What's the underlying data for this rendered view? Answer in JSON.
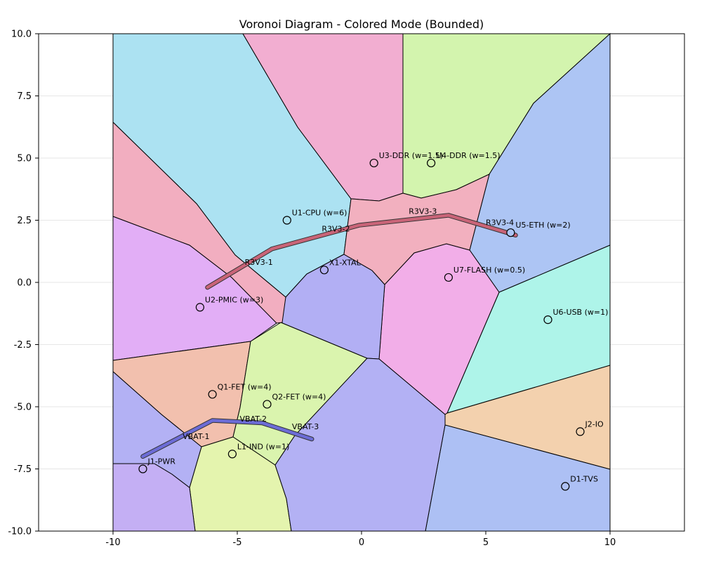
{
  "title": "Voronoi Diagram - Colored Mode (Bounded)",
  "x_ticks": [
    -10,
    -5,
    0,
    5,
    10
  ],
  "y_ticks": [
    10.0,
    7.5,
    5.0,
    2.5,
    0.0,
    -2.5,
    -5.0,
    -7.5,
    -10.0
  ],
  "chart_data": {
    "type": "scatter",
    "title": "Voronoi Diagram - Colored Mode (Bounded)",
    "xlim": [
      -13,
      13
    ],
    "ylim": [
      -10,
      10
    ],
    "bounds": [
      -10,
      10,
      -10,
      10
    ],
    "grid": true,
    "sites": [
      {
        "name": "U1-CPU (w=6)",
        "x": -3.0,
        "y": 2.5,
        "color": "#ace2f2"
      },
      {
        "name": "U2-PMIC (w=3)",
        "x": -6.5,
        "y": -1.0,
        "color": "#e2aef6"
      },
      {
        "name": "U3-DDR (w=1.5)",
        "x": 0.5,
        "y": 4.8,
        "color": "#f2aed1"
      },
      {
        "name": "U4-DDR (w=1.5)",
        "x": 2.8,
        "y": 4.8,
        "color": "#d3f4ae"
      },
      {
        "name": "U5-ETH (w=2)",
        "x": 6.0,
        "y": 2.0,
        "color": "#adc5f4"
      },
      {
        "name": "U6-USB (w=1)",
        "x": 7.5,
        "y": -1.5,
        "color": "#aef4e9"
      },
      {
        "name": "U7-FLASH (w=0.5)",
        "x": 3.5,
        "y": 0.2,
        "color": "#f2aee8"
      },
      {
        "name": "X1-XTAL",
        "x": -1.5,
        "y": 0.5,
        "color": "#b2aff4"
      },
      {
        "name": "Q1-FET (w=4)",
        "x": -6.0,
        "y": -4.5,
        "color": "#f2c0ae"
      },
      {
        "name": "Q2-FET (w=4)",
        "x": -3.8,
        "y": -4.9,
        "color": "#daf4ae"
      },
      {
        "name": "L1-IND (w=1)",
        "x": -5.2,
        "y": -6.9,
        "color": "#e4f4ae"
      },
      {
        "name": "J1-PWR",
        "x": -8.8,
        "y": -7.5,
        "color": "#c4aff4"
      },
      {
        "name": "J2-IO",
        "x": 8.8,
        "y": -6.0,
        "color": "#f3d1ae"
      },
      {
        "name": "D1-TVS",
        "x": 8.2,
        "y": -8.2,
        "color": "#adc0f4"
      }
    ],
    "extra_cells": [
      {
        "color": "#f2aec0"
      },
      {
        "color": "#f2b0bf"
      },
      {
        "color": "#b3b1f4"
      },
      {
        "color": "#f2b2ba"
      }
    ],
    "traces": [
      {
        "color": "#c96478",
        "points": [
          [
            -6.2,
            -0.2
          ],
          [
            -3.6,
            1.35
          ],
          [
            -0.1,
            2.3
          ],
          [
            3.5,
            2.7
          ],
          [
            6.2,
            1.9
          ]
        ],
        "labels": [
          {
            "text": "R3V3-1",
            "x": -4.7,
            "y": 0.7
          },
          {
            "text": "R3V3-2",
            "x": -1.6,
            "y": 2.05
          },
          {
            "text": "R3V3-3",
            "x": 1.9,
            "y": 2.75
          },
          {
            "text": "R3V3-4",
            "x": 5.0,
            "y": 2.3
          }
        ]
      },
      {
        "color": "#6c6cd6",
        "points": [
          [
            -8.8,
            -7.0
          ],
          [
            -6.0,
            -5.55
          ],
          [
            -4.0,
            -5.65
          ],
          [
            -2.0,
            -6.3
          ]
        ],
        "labels": [
          {
            "text": "VBAT-1",
            "x": -7.2,
            "y": -6.3
          },
          {
            "text": "VBAT-2",
            "x": -4.9,
            "y": -5.6
          },
          {
            "text": "VBAT-3",
            "x": -2.8,
            "y": -5.9
          }
        ]
      }
    ]
  }
}
